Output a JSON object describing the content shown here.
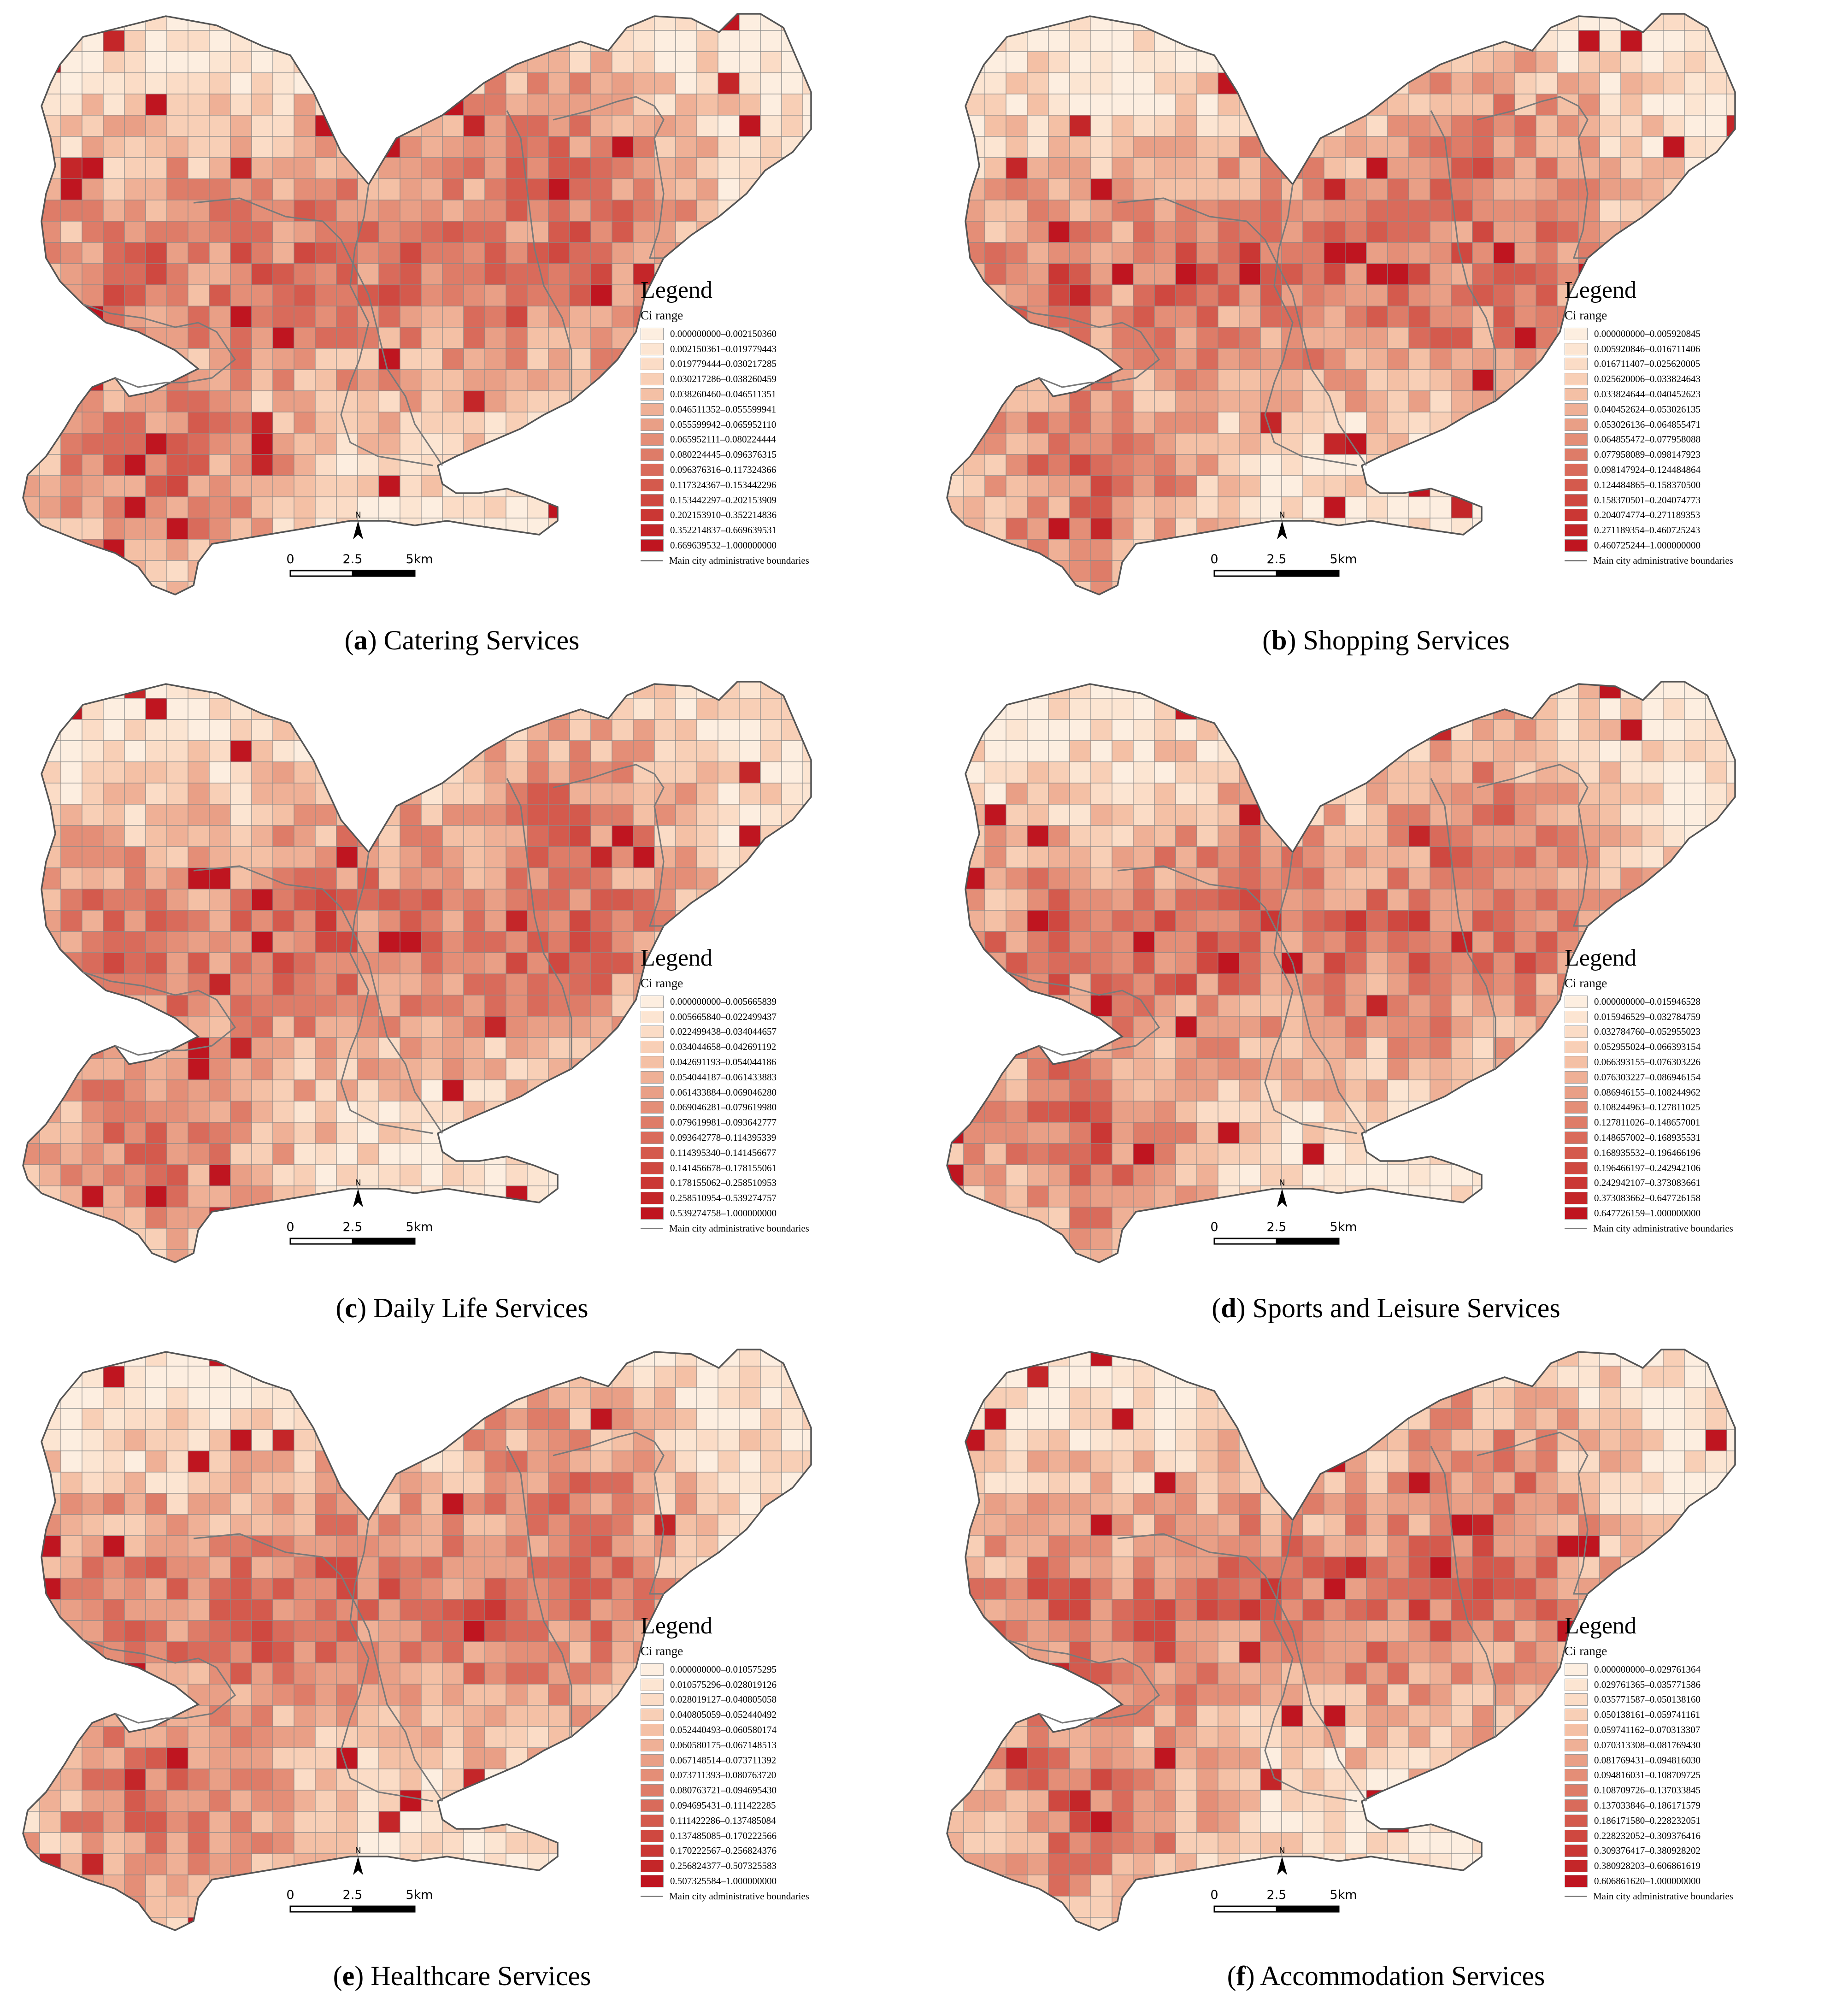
{
  "figure": {
    "panels": [
      {
        "id": "a",
        "caption_letter": "a",
        "caption_title": "Catering Services",
        "legend_title": "Legend",
        "legend_subtitle": "Ci range",
        "boundary_label": "Main city administrative boundaries",
        "scale_labels": [
          "0",
          "2.5",
          "5km"
        ],
        "north_label": "N",
        "seed": 11,
        "ranges": [
          "0.000000000–0.002150360",
          "0.002150361–0.019779443",
          "0.019779444–0.030217285",
          "0.030217286–0.038260459",
          "0.038260460–0.046511351",
          "0.046511352–0.055599941",
          "0.055599942–0.065952110",
          "0.065952111–0.080224444",
          "0.080224445–0.096376315",
          "0.096376316–0.117324366",
          "0.117324367–0.153442296",
          "0.153442297–0.202153909",
          "0.202153910–0.352214836",
          "0.352214837–0.669639531",
          "0.669639532–1.000000000"
        ]
      },
      {
        "id": "b",
        "caption_letter": "b",
        "caption_title": "Shopping Services",
        "legend_title": "Legend",
        "legend_subtitle": "Ci range",
        "boundary_label": "Main city administrative boundaries",
        "scale_labels": [
          "0",
          "2.5",
          "5km"
        ],
        "north_label": "N",
        "seed": 23,
        "ranges": [
          "0.000000000–0.005920845",
          "0.005920846–0.016711406",
          "0.016711407–0.025620005",
          "0.025620006–0.033824643",
          "0.033824644–0.040452623",
          "0.040452624–0.053026135",
          "0.053026136–0.064855471",
          "0.064855472–0.077958088",
          "0.077958089–0.098147923",
          "0.098147924–0.124484864",
          "0.124484865–0.158370500",
          "0.158370501–0.204074773",
          "0.204074774–0.271189353",
          "0.271189354–0.460725243",
          "0.460725244–1.000000000"
        ]
      },
      {
        "id": "c",
        "caption_letter": "c",
        "caption_title": "Daily Life Services",
        "legend_title": "Legend",
        "legend_subtitle": "Ci range",
        "boundary_label": "Main city administrative boundaries",
        "scale_labels": [
          "0",
          "2.5",
          "5km"
        ],
        "north_label": "N",
        "seed": 37,
        "ranges": [
          "0.000000000–0.005665839",
          "0.005665840–0.022499437",
          "0.022499438–0.034044657",
          "0.034044658–0.042691192",
          "0.042691193–0.054044186",
          "0.054044187–0.061433883",
          "0.061433884–0.069046280",
          "0.069046281–0.079619980",
          "0.079619981–0.093642777",
          "0.093642778–0.114395339",
          "0.114395340–0.141456677",
          "0.141456678–0.178155061",
          "0.178155062–0.258510953",
          "0.258510954–0.539274757",
          "0.539274758–1.000000000"
        ]
      },
      {
        "id": "d",
        "caption_letter": "d",
        "caption_title": "Sports and Leisure Services",
        "legend_title": "Legend",
        "legend_subtitle": "Ci range",
        "boundary_label": "Main city administrative boundaries",
        "scale_labels": [
          "0",
          "2.5",
          "5km"
        ],
        "north_label": "N",
        "seed": 41,
        "ranges": [
          "0.000000000–0.015946528",
          "0.015946529–0.032784759",
          "0.032784760–0.052955023",
          "0.052955024–0.066393154",
          "0.066393155–0.076303226",
          "0.076303227–0.086946154",
          "0.086946155–0.108244962",
          "0.108244963–0.127811025",
          "0.127811026–0.148657001",
          "0.148657002–0.168935531",
          "0.168935532–0.196466196",
          "0.196466197–0.242942106",
          "0.242942107–0.373083661",
          "0.373083662–0.647726158",
          "0.647726159–1.000000000"
        ]
      },
      {
        "id": "e",
        "caption_letter": "e",
        "caption_title": "Healthcare Services",
        "legend_title": "Legend",
        "legend_subtitle": "Ci range",
        "boundary_label": "Main city administrative boundaries",
        "scale_labels": [
          "0",
          "2.5",
          "5km"
        ],
        "north_label": "N",
        "seed": 53,
        "ranges": [
          "0.000000000–0.010575295",
          "0.010575296–0.028019126",
          "0.028019127–0.040805058",
          "0.040805059–0.052440492",
          "0.052440493–0.060580174",
          "0.060580175–0.067148513",
          "0.067148514–0.073711392",
          "0.073711393–0.080763720",
          "0.080763721–0.094695430",
          "0.094695431–0.111422285",
          "0.111422286–0.137485084",
          "0.137485085–0.170222566",
          "0.170222567–0.256824376",
          "0.256824377–0.507325583",
          "0.507325584–1.000000000"
        ]
      },
      {
        "id": "f",
        "caption_letter": "f",
        "caption_title": "Accommodation Services",
        "legend_title": "Legend",
        "legend_subtitle": "Ci range",
        "boundary_label": "Main city administrative boundaries",
        "scale_labels": [
          "0",
          "2.5",
          "5km"
        ],
        "north_label": "N",
        "seed": 67,
        "ranges": [
          "0.000000000–0.029761364",
          "0.029761365–0.035771586",
          "0.035771587–0.050138160",
          "0.050138161–0.059741161",
          "0.059741162–0.070313307",
          "0.070313308–0.081769430",
          "0.081769431–0.094816030",
          "0.094816031–0.108709725",
          "0.108709726–0.137033845",
          "0.137033846–0.186171579",
          "0.186171580–0.228232051",
          "0.228232052–0.309376416",
          "0.309376417–0.380928202",
          "0.380928203–0.606861619",
          "0.606861620–1.000000000"
        ]
      }
    ],
    "class_colors": [
      "#fdeee0",
      "#fce5d2",
      "#fbdcc6",
      "#f8cfb6",
      "#f4c0a5",
      "#efb096",
      "#e99f86",
      "#e48e77",
      "#de7c68",
      "#d96b5b",
      "#d45a4d",
      "#cf4840",
      "#ca3734",
      "#c42629",
      "#bf1520"
    ]
  }
}
